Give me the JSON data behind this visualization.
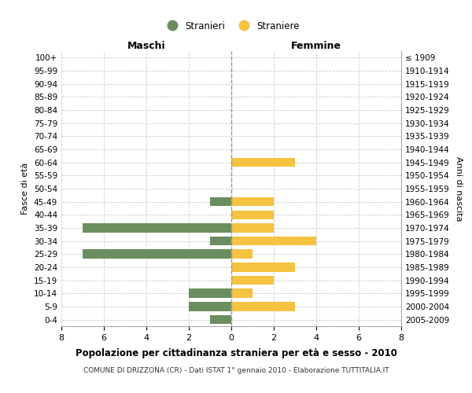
{
  "age_groups": [
    "100+",
    "95-99",
    "90-94",
    "85-89",
    "80-84",
    "75-79",
    "70-74",
    "65-69",
    "60-64",
    "55-59",
    "50-54",
    "45-49",
    "40-44",
    "35-39",
    "30-34",
    "25-29",
    "20-24",
    "15-19",
    "10-14",
    "5-9",
    "0-4"
  ],
  "birth_years": [
    "≤ 1909",
    "1910-1914",
    "1915-1919",
    "1920-1924",
    "1925-1929",
    "1930-1934",
    "1935-1939",
    "1940-1944",
    "1945-1949",
    "1950-1954",
    "1955-1959",
    "1960-1964",
    "1965-1969",
    "1970-1974",
    "1975-1979",
    "1980-1984",
    "1985-1989",
    "1990-1994",
    "1995-1999",
    "2000-2004",
    "2005-2009"
  ],
  "maschi": [
    0,
    0,
    0,
    0,
    0,
    0,
    0,
    0,
    0,
    0,
    0,
    1,
    0,
    7,
    1,
    7,
    0,
    0,
    2,
    2,
    1
  ],
  "femmine": [
    0,
    0,
    0,
    0,
    0,
    0,
    0,
    0,
    3,
    0,
    0,
    2,
    2,
    2,
    4,
    1,
    3,
    2,
    1,
    3,
    0
  ],
  "color_maschi": "#6b8e5e",
  "color_femmine": "#f5c242",
  "title": "Popolazione per cittadinanza straniera per età e sesso - 2010",
  "subtitle": "COMUNE DI DRIZZONA (CR) - Dati ISTAT 1° gennaio 2010 - Elaborazione TUTTITALIA.IT",
  "xlabel_left": "Maschi",
  "xlabel_right": "Femmine",
  "ylabel_left": "Fasce di età",
  "ylabel_right": "Anni di nascita",
  "legend_maschi": "Stranieri",
  "legend_femmine": "Straniere",
  "xlim": 8,
  "background_color": "#ffffff",
  "grid_color": "#cccccc"
}
